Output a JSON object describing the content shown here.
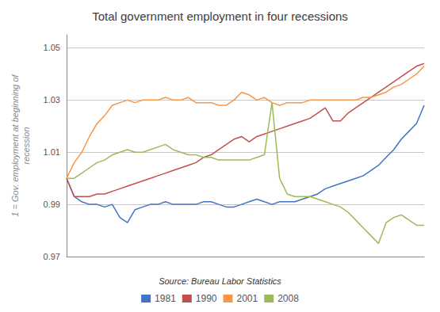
{
  "chart_data": {
    "type": "line",
    "title": "Total government employment in four recessions",
    "ylabel": "1 = Gov. employment at beginning of\nrecession",
    "source": "Source: Bureau Labor Statistics",
    "categories": [
      null,
      null,
      null,
      null,
      null,
      null,
      null,
      null,
      null,
      null,
      null,
      null,
      null,
      null,
      null,
      null,
      null,
      null,
      null,
      null,
      null,
      null,
      null,
      null,
      null,
      null,
      null,
      null,
      null,
      null,
      null,
      null,
      null,
      null,
      null,
      null,
      null,
      null,
      null,
      null,
      null,
      null,
      null,
      null,
      null,
      null,
      null,
      null
    ],
    "series": [
      {
        "name": "1981",
        "color": "#4472c4",
        "values": [
          1.0,
          0.993,
          0.991,
          0.99,
          0.99,
          0.989,
          0.99,
          0.985,
          0.983,
          0.988,
          0.989,
          0.99,
          0.99,
          0.991,
          0.99,
          0.99,
          0.99,
          0.99,
          0.991,
          0.991,
          0.99,
          0.989,
          0.989,
          0.99,
          0.991,
          0.992,
          0.991,
          0.99,
          0.991,
          0.991,
          0.991,
          0.992,
          0.993,
          0.994,
          0.996,
          0.997,
          0.998,
          0.999,
          1.0,
          1.001,
          1.003,
          1.005,
          1.008,
          1.011,
          1.015,
          1.018,
          1.021,
          1.028
        ]
      },
      {
        "name": "1990",
        "color": "#c0504d",
        "values": [
          1.0,
          0.993,
          0.993,
          0.993,
          0.994,
          0.994,
          0.995,
          0.996,
          0.997,
          0.998,
          0.999,
          1.0,
          1.001,
          1.002,
          1.003,
          1.004,
          1.005,
          1.006,
          1.008,
          1.009,
          1.011,
          1.013,
          1.015,
          1.016,
          1.014,
          1.016,
          1.017,
          1.018,
          1.019,
          1.02,
          1.021,
          1.022,
          1.023,
          1.025,
          1.027,
          1.022,
          1.022,
          1.025,
          1.027,
          1.029,
          1.031,
          1.033,
          1.035,
          1.037,
          1.039,
          1.041,
          1.043,
          1.044
        ]
      },
      {
        "name": "2001",
        "color": "#f79646",
        "values": [
          1.0,
          1.006,
          1.01,
          1.016,
          1.021,
          1.024,
          1.028,
          1.029,
          1.03,
          1.029,
          1.03,
          1.03,
          1.03,
          1.031,
          1.03,
          1.03,
          1.031,
          1.029,
          1.029,
          1.029,
          1.028,
          1.028,
          1.03,
          1.033,
          1.032,
          1.03,
          1.031,
          1.029,
          1.028,
          1.029,
          1.029,
          1.029,
          1.03,
          1.03,
          1.03,
          1.03,
          1.03,
          1.03,
          1.03,
          1.031,
          1.031,
          1.032,
          1.033,
          1.035,
          1.036,
          1.038,
          1.04,
          1.043
        ]
      },
      {
        "name": "2008",
        "color": "#9bbb59",
        "values": [
          1.0,
          1.0,
          1.002,
          1.004,
          1.006,
          1.007,
          1.009,
          1.01,
          1.011,
          1.01,
          1.01,
          1.011,
          1.012,
          1.013,
          1.011,
          1.01,
          1.009,
          1.009,
          1.008,
          1.008,
          1.007,
          1.007,
          1.007,
          1.007,
          1.007,
          1.008,
          1.009,
          1.029,
          1.0,
          0.994,
          0.993,
          0.993,
          0.993,
          0.992,
          0.991,
          0.99,
          0.989,
          0.987,
          0.984,
          0.981,
          0.978,
          0.975,
          0.983,
          0.985,
          0.986,
          0.984,
          0.982,
          0.982
        ]
      }
    ],
    "ylim": [
      0.97,
      1.055
    ],
    "yticks": [
      0.97,
      0.99,
      1.01,
      1.03,
      1.05
    ],
    "grid": true,
    "legend": "bottom",
    "tick_labels": "y"
  }
}
